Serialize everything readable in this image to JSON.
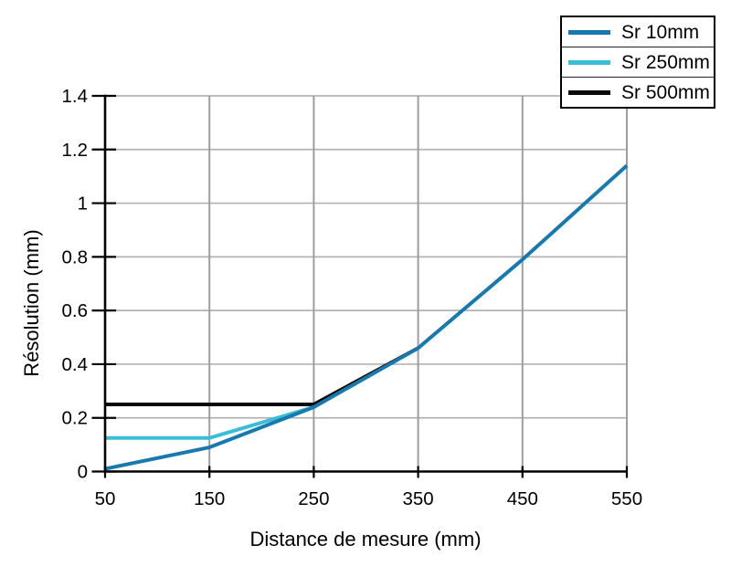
{
  "chart_data": {
    "type": "line",
    "title": "",
    "xlabel": "Distance de mesure (mm)",
    "ylabel": "Résolution (mm)",
    "xlim": [
      50,
      550
    ],
    "ylim": [
      0,
      1.4
    ],
    "x_ticks": [
      50,
      150,
      250,
      350,
      450,
      550
    ],
    "x_tick_labels": [
      "50",
      "150",
      "250",
      "350",
      "450",
      "550"
    ],
    "y_ticks": [
      0,
      0.2,
      0.4,
      0.6,
      0.8,
      1,
      1.2,
      1.4
    ],
    "y_tick_labels": [
      "0",
      "0.2",
      "0.4",
      "0.6",
      "0.8",
      "1",
      "1.2",
      "1.4"
    ],
    "grid": true,
    "legend_position": "top-right",
    "series": [
      {
        "name": "Sr 10mm",
        "color": "#1879af",
        "x": [
          50,
          150,
          250,
          350,
          450,
          550
        ],
        "y": [
          0.01,
          0.09,
          0.24,
          0.46,
          0.79,
          1.14
        ]
      },
      {
        "name": "Sr 250mm",
        "color": "#38bed8",
        "x": [
          50,
          150,
          250
        ],
        "y": [
          0.125,
          0.125,
          0.24
        ]
      },
      {
        "name": "Sr 500mm",
        "color": "#0a0a0a",
        "x": [
          50,
          150,
          250,
          350
        ],
        "y": [
          0.25,
          0.25,
          0.25,
          0.46
        ]
      }
    ],
    "style": {
      "h_grid_color": "#b3b3b3",
      "v_grid_color": "#9e9e9e",
      "axis_color": "#000000",
      "background": "#ffffff"
    }
  }
}
